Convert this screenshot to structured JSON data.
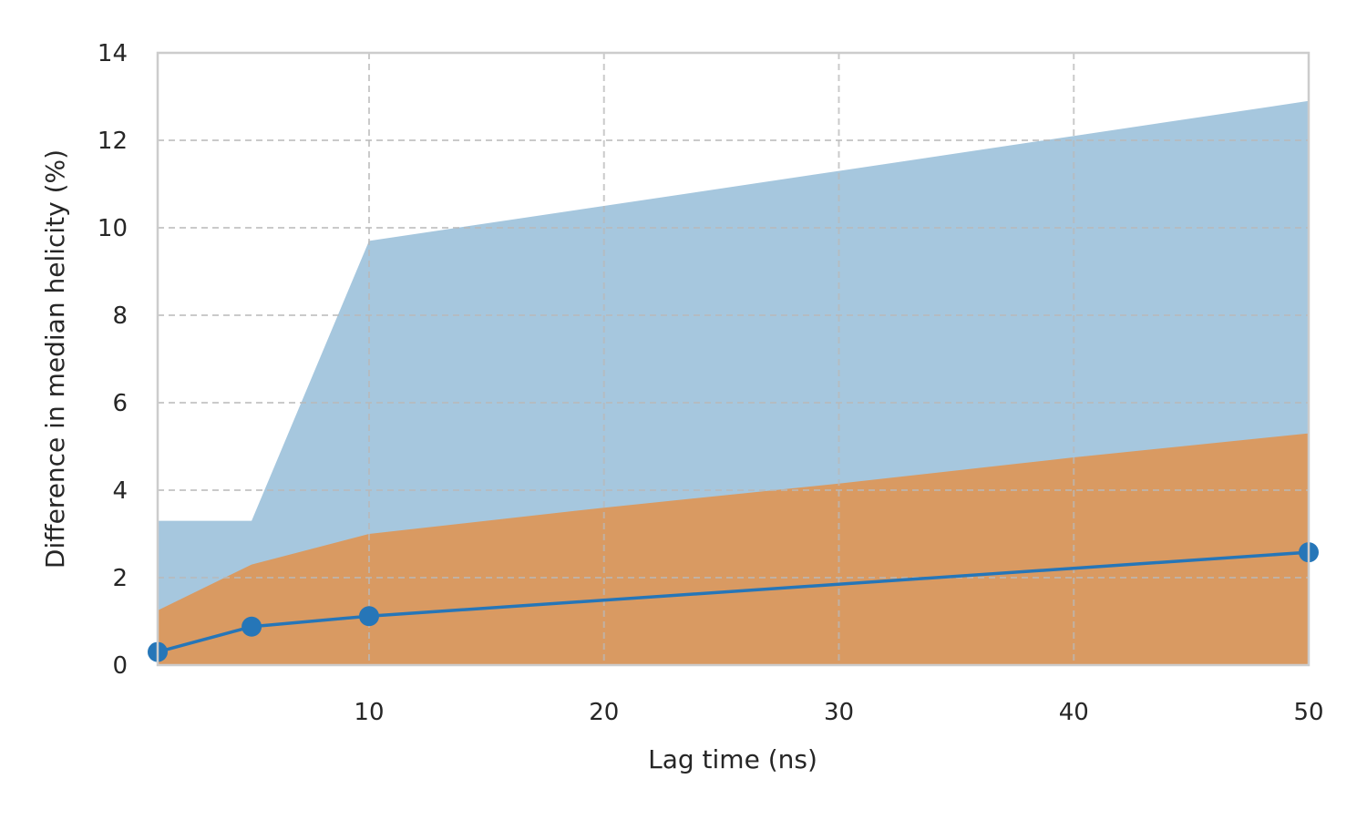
{
  "chart_data": {
    "type": "area",
    "title": "",
    "xlabel": "Lag time (ns)",
    "ylabel": "Difference in median helicity (%)",
    "xlim": [
      1,
      50
    ],
    "ylim": [
      0,
      14
    ],
    "xticks": [
      10,
      20,
      30,
      40,
      50
    ],
    "yticks": [
      0,
      2,
      4,
      6,
      8,
      10,
      12,
      14
    ],
    "grid": true,
    "bands": [
      {
        "color": "#a6c7de",
        "x": [
          1,
          5,
          10,
          20,
          30,
          40,
          50
        ],
        "lower": [
          0,
          0,
          0,
          0,
          0,
          0,
          0
        ],
        "upper": [
          3.3,
          3.3,
          9.7,
          10.5,
          11.3,
          12.1,
          12.9
        ]
      },
      {
        "color": "#d99a62",
        "x": [
          1,
          5,
          10,
          20,
          30,
          40,
          50
        ],
        "lower": [
          0,
          0,
          0,
          0,
          0,
          0,
          0
        ],
        "upper": [
          1.25,
          2.3,
          3.0,
          3.6,
          4.15,
          4.75,
          5.3
        ]
      }
    ],
    "series": [
      {
        "color": "#2676b8",
        "marker": "circle",
        "x": [
          1,
          5,
          10,
          50
        ],
        "values": [
          0.3,
          0.88,
          1.12,
          2.58
        ]
      }
    ]
  }
}
